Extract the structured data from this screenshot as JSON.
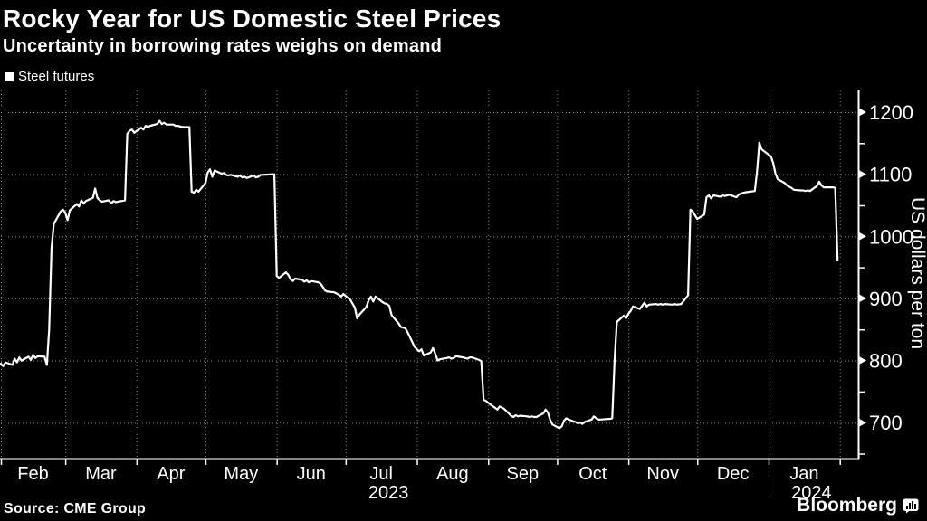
{
  "header": {
    "title": "Rocky Year for US Domestic Steel Prices",
    "subtitle": "Uncertainty in borrowing rates weighs on demand"
  },
  "legend": {
    "label": "Steel futures",
    "swatch_color": "#ffffff"
  },
  "source": {
    "label": "Source: CME Group"
  },
  "branding": {
    "name": "Bloomberg",
    "logo_icon": "chart-bubble-icon"
  },
  "colors": {
    "background": "#000000",
    "text": "#ffffff",
    "line": "#ffffff",
    "grid": "#8a8a8a",
    "axis": "#ffffff"
  },
  "chart_data": {
    "type": "line",
    "title": "Rocky Year for US Domestic Steel Prices",
    "subtitle": "Uncertainty in borrowing rates weighs on demand",
    "ylabel": "US dollars per ton",
    "legend_entries": [
      "Steel futures"
    ],
    "legend_position": "top-left",
    "grid": true,
    "xlim": [
      "2023-02-01",
      "2024-02-09"
    ],
    "ylim": [
      642,
      1235
    ],
    "y_ticks_major": [
      700,
      800,
      900,
      1000,
      1100,
      1200
    ],
    "y_ticks_minor": [
      650,
      750,
      850,
      950,
      1050,
      1150
    ],
    "x_month_starts": [
      "2023-02-01",
      "2023-03-01",
      "2023-04-01",
      "2023-05-01",
      "2023-06-01",
      "2023-07-01",
      "2023-08-01",
      "2023-09-01",
      "2023-10-01",
      "2023-11-01",
      "2023-12-01",
      "2024-01-01",
      "2024-02-01"
    ],
    "x_month_labels": [
      "Feb",
      "Mar",
      "Apr",
      "May",
      "Jun",
      "Jul",
      "Aug",
      "Sep",
      "Oct",
      "Nov",
      "Dec",
      "Jan"
    ],
    "x_year_labels": [
      {
        "label": "2023",
        "under_month_index": 5
      },
      {
        "label": "2024",
        "under_month_index": 11
      }
    ],
    "year_separator_at": "2024-01-01",
    "series": [
      {
        "name": "Steel futures",
        "color": "#ffffff",
        "points": [
          [
            "2023-02-01",
            795
          ],
          [
            "2023-02-02",
            791
          ],
          [
            "2023-02-03",
            797
          ],
          [
            "2023-02-06",
            793
          ],
          [
            "2023-02-07",
            803
          ],
          [
            "2023-02-08",
            797
          ],
          [
            "2023-02-09",
            805
          ],
          [
            "2023-02-10",
            800
          ],
          [
            "2023-02-13",
            806
          ],
          [
            "2023-02-14",
            801
          ],
          [
            "2023-02-15",
            809
          ],
          [
            "2023-02-16",
            804
          ],
          [
            "2023-02-17",
            807
          ],
          [
            "2023-02-20",
            806
          ],
          [
            "2023-02-21",
            793
          ],
          [
            "2023-02-22",
            850
          ],
          [
            "2023-02-23",
            980
          ],
          [
            "2023-02-24",
            1020
          ],
          [
            "2023-02-27",
            1040
          ],
          [
            "2023-02-28",
            1043
          ],
          [
            "2023-03-01",
            1038
          ],
          [
            "2023-03-02",
            1026
          ],
          [
            "2023-03-03",
            1042
          ],
          [
            "2023-03-06",
            1052
          ],
          [
            "2023-03-07",
            1048
          ],
          [
            "2023-03-08",
            1058
          ],
          [
            "2023-03-09",
            1053
          ],
          [
            "2023-03-10",
            1057
          ],
          [
            "2023-03-13",
            1062
          ],
          [
            "2023-03-14",
            1077
          ],
          [
            "2023-03-15",
            1062
          ],
          [
            "2023-03-16",
            1058
          ],
          [
            "2023-03-17",
            1056
          ],
          [
            "2023-03-20",
            1058
          ],
          [
            "2023-03-21",
            1053
          ],
          [
            "2023-03-22",
            1057
          ],
          [
            "2023-03-23",
            1055
          ],
          [
            "2023-03-24",
            1056
          ],
          [
            "2023-03-27",
            1058
          ],
          [
            "2023-03-28",
            1165
          ],
          [
            "2023-03-29",
            1170
          ],
          [
            "2023-03-30",
            1172
          ],
          [
            "2023-03-31",
            1167
          ],
          [
            "2023-04-03",
            1175
          ],
          [
            "2023-04-04",
            1172
          ],
          [
            "2023-04-05",
            1178
          ],
          [
            "2023-04-06",
            1176
          ],
          [
            "2023-04-07",
            1178
          ],
          [
            "2023-04-10",
            1181
          ],
          [
            "2023-04-11",
            1186
          ],
          [
            "2023-04-12",
            1181
          ],
          [
            "2023-04-13",
            1183
          ],
          [
            "2023-04-14",
            1180
          ],
          [
            "2023-04-17",
            1180
          ],
          [
            "2023-04-18",
            1178
          ],
          [
            "2023-04-19",
            1178
          ],
          [
            "2023-04-20",
            1177
          ],
          [
            "2023-04-21",
            1176
          ],
          [
            "2023-04-24",
            1176
          ],
          [
            "2023-04-25",
            1072
          ],
          [
            "2023-04-26",
            1070
          ],
          [
            "2023-04-27",
            1075
          ],
          [
            "2023-04-28",
            1072
          ],
          [
            "2023-05-01",
            1086
          ],
          [
            "2023-05-02",
            1103
          ],
          [
            "2023-05-03",
            1108
          ],
          [
            "2023-05-04",
            1096
          ],
          [
            "2023-05-05",
            1106
          ],
          [
            "2023-05-08",
            1101
          ],
          [
            "2023-05-09",
            1102
          ],
          [
            "2023-05-10",
            1099
          ],
          [
            "2023-05-11",
            1098
          ],
          [
            "2023-05-12",
            1099
          ],
          [
            "2023-05-15",
            1096
          ],
          [
            "2023-05-16",
            1098
          ],
          [
            "2023-05-17",
            1095
          ],
          [
            "2023-05-18",
            1096
          ],
          [
            "2023-05-19",
            1094
          ],
          [
            "2023-05-22",
            1098
          ],
          [
            "2023-05-23",
            1095
          ],
          [
            "2023-05-24",
            1096
          ],
          [
            "2023-05-25",
            1099
          ],
          [
            "2023-05-26",
            1099
          ],
          [
            "2023-05-30",
            1100
          ],
          [
            "2023-05-31",
            1100
          ],
          [
            "2023-06-01",
            936
          ],
          [
            "2023-06-02",
            933
          ],
          [
            "2023-06-05",
            942
          ],
          [
            "2023-06-06",
            938
          ],
          [
            "2023-06-07",
            931
          ],
          [
            "2023-06-08",
            928
          ],
          [
            "2023-06-09",
            932
          ],
          [
            "2023-06-12",
            930
          ],
          [
            "2023-06-13",
            927
          ],
          [
            "2023-06-14",
            929
          ],
          [
            "2023-06-15",
            926
          ],
          [
            "2023-06-16",
            928
          ],
          [
            "2023-06-19",
            926
          ],
          [
            "2023-06-20",
            924
          ],
          [
            "2023-06-21",
            919
          ],
          [
            "2023-06-22",
            913
          ],
          [
            "2023-06-23",
            911
          ],
          [
            "2023-06-26",
            910
          ],
          [
            "2023-06-27",
            908
          ],
          [
            "2023-06-28",
            906
          ],
          [
            "2023-06-29",
            903
          ],
          [
            "2023-06-30",
            907
          ],
          [
            "2023-07-03",
            898
          ],
          [
            "2023-07-05",
            885
          ],
          [
            "2023-07-06",
            868
          ],
          [
            "2023-07-07",
            874
          ],
          [
            "2023-07-10",
            886
          ],
          [
            "2023-07-11",
            897
          ],
          [
            "2023-07-12",
            903
          ],
          [
            "2023-07-13",
            895
          ],
          [
            "2023-07-14",
            903
          ],
          [
            "2023-07-17",
            894
          ],
          [
            "2023-07-18",
            892
          ],
          [
            "2023-07-19",
            891
          ],
          [
            "2023-07-20",
            888
          ],
          [
            "2023-07-21",
            873
          ],
          [
            "2023-07-24",
            860
          ],
          [
            "2023-07-25",
            854
          ],
          [
            "2023-07-26",
            853
          ],
          [
            "2023-07-27",
            852
          ],
          [
            "2023-07-28",
            845
          ],
          [
            "2023-07-31",
            822
          ],
          [
            "2023-08-01",
            818
          ],
          [
            "2023-08-02",
            815
          ],
          [
            "2023-08-03",
            818
          ],
          [
            "2023-08-04",
            808
          ],
          [
            "2023-08-07",
            813
          ],
          [
            "2023-08-08",
            820
          ],
          [
            "2023-08-09",
            811
          ],
          [
            "2023-08-10",
            800
          ],
          [
            "2023-08-11",
            802
          ],
          [
            "2023-08-14",
            804
          ],
          [
            "2023-08-15",
            805
          ],
          [
            "2023-08-16",
            803
          ],
          [
            "2023-08-17",
            804
          ],
          [
            "2023-08-18",
            807
          ],
          [
            "2023-08-21",
            805
          ],
          [
            "2023-08-22",
            804
          ],
          [
            "2023-08-23",
            803
          ],
          [
            "2023-08-24",
            805
          ],
          [
            "2023-08-25",
            805
          ],
          [
            "2023-08-28",
            801
          ],
          [
            "2023-08-29",
            799
          ],
          [
            "2023-08-30",
            737
          ],
          [
            "2023-08-31",
            735
          ],
          [
            "2023-09-01",
            732
          ],
          [
            "2023-09-05",
            721
          ],
          [
            "2023-09-06",
            726
          ],
          [
            "2023-09-07",
            724
          ],
          [
            "2023-09-08",
            722
          ],
          [
            "2023-09-11",
            711
          ],
          [
            "2023-09-12",
            709
          ],
          [
            "2023-09-13",
            712
          ],
          [
            "2023-09-14",
            710
          ],
          [
            "2023-09-15",
            711
          ],
          [
            "2023-09-18",
            710
          ],
          [
            "2023-09-19",
            709
          ],
          [
            "2023-09-20",
            710
          ],
          [
            "2023-09-21",
            709
          ],
          [
            "2023-09-22",
            709
          ],
          [
            "2023-09-25",
            715
          ],
          [
            "2023-09-26",
            721
          ],
          [
            "2023-09-27",
            716
          ],
          [
            "2023-09-28",
            704
          ],
          [
            "2023-09-29",
            697
          ],
          [
            "2023-10-02",
            691
          ],
          [
            "2023-10-03",
            694
          ],
          [
            "2023-10-04",
            703
          ],
          [
            "2023-10-05",
            707
          ],
          [
            "2023-10-06",
            705
          ],
          [
            "2023-10-09",
            701
          ],
          [
            "2023-10-10",
            699
          ],
          [
            "2023-10-11",
            700
          ],
          [
            "2023-10-12",
            698
          ],
          [
            "2023-10-13",
            701
          ],
          [
            "2023-10-16",
            705
          ],
          [
            "2023-10-17",
            710
          ],
          [
            "2023-10-18",
            707
          ],
          [
            "2023-10-19",
            705
          ],
          [
            "2023-10-20",
            705
          ],
          [
            "2023-10-23",
            706
          ],
          [
            "2023-10-24",
            706
          ],
          [
            "2023-10-25",
            707
          ],
          [
            "2023-10-26",
            800
          ],
          [
            "2023-10-27",
            862
          ],
          [
            "2023-10-30",
            872
          ],
          [
            "2023-10-31",
            868
          ],
          [
            "2023-11-01",
            875
          ],
          [
            "2023-11-02",
            880
          ],
          [
            "2023-11-03",
            887
          ],
          [
            "2023-11-06",
            883
          ],
          [
            "2023-11-07",
            888
          ],
          [
            "2023-11-08",
            893
          ],
          [
            "2023-11-09",
            887
          ],
          [
            "2023-11-10",
            890
          ],
          [
            "2023-11-13",
            891
          ],
          [
            "2023-11-14",
            890
          ],
          [
            "2023-11-15",
            891
          ],
          [
            "2023-11-16",
            890
          ],
          [
            "2023-11-17",
            891
          ],
          [
            "2023-11-20",
            890
          ],
          [
            "2023-11-21",
            891
          ],
          [
            "2023-11-22",
            890
          ],
          [
            "2023-11-24",
            891
          ],
          [
            "2023-11-27",
            905
          ],
          [
            "2023-11-28",
            1043
          ],
          [
            "2023-11-29",
            1040
          ],
          [
            "2023-11-30",
            1034
          ],
          [
            "2023-12-01",
            1028
          ],
          [
            "2023-12-04",
            1035
          ],
          [
            "2023-12-05",
            1063
          ],
          [
            "2023-12-06",
            1066
          ],
          [
            "2023-12-07",
            1061
          ],
          [
            "2023-12-08",
            1066
          ],
          [
            "2023-12-11",
            1064
          ],
          [
            "2023-12-12",
            1066
          ],
          [
            "2023-12-13",
            1065
          ],
          [
            "2023-12-14",
            1066
          ],
          [
            "2023-12-15",
            1067
          ],
          [
            "2023-12-18",
            1063
          ],
          [
            "2023-12-19",
            1067
          ],
          [
            "2023-12-20",
            1069
          ],
          [
            "2023-12-21",
            1070
          ],
          [
            "2023-12-22",
            1071
          ],
          [
            "2023-12-26",
            1073
          ],
          [
            "2023-12-27",
            1105
          ],
          [
            "2023-12-28",
            1151
          ],
          [
            "2023-12-29",
            1140
          ],
          [
            "2024-01-02",
            1129
          ],
          [
            "2024-01-03",
            1118
          ],
          [
            "2024-01-04",
            1101
          ],
          [
            "2024-01-05",
            1092
          ],
          [
            "2024-01-08",
            1086
          ],
          [
            "2024-01-09",
            1082
          ],
          [
            "2024-01-10",
            1080
          ],
          [
            "2024-01-11",
            1078
          ],
          [
            "2024-01-12",
            1075
          ],
          [
            "2024-01-15",
            1074
          ],
          [
            "2024-01-16",
            1074
          ],
          [
            "2024-01-17",
            1073
          ],
          [
            "2024-01-18",
            1074
          ],
          [
            "2024-01-19",
            1073
          ],
          [
            "2024-01-22",
            1081
          ],
          [
            "2024-01-23",
            1088
          ],
          [
            "2024-01-24",
            1082
          ],
          [
            "2024-01-25",
            1079
          ],
          [
            "2024-01-26",
            1079
          ],
          [
            "2024-01-29",
            1079
          ],
          [
            "2024-01-30",
            1078
          ],
          [
            "2024-01-31",
            962
          ]
        ]
      }
    ]
  }
}
